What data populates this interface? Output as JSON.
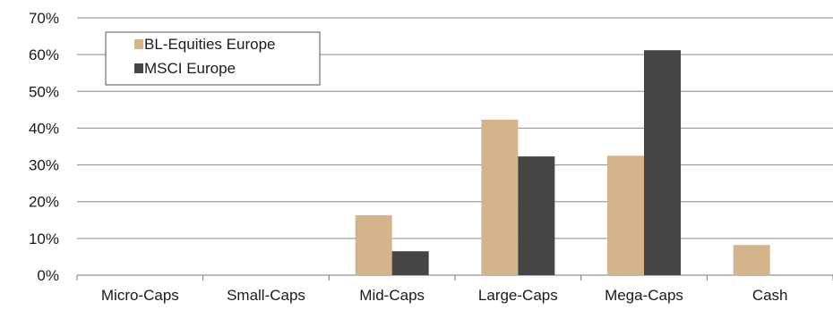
{
  "chart_data": {
    "type": "bar",
    "categories": [
      "Micro-Caps",
      "Small-Caps",
      "Mid-Caps",
      "Large-Caps",
      "Mega-Caps",
      "Cash"
    ],
    "series": [
      {
        "name": "BL-Equities Europe",
        "values": [
          0,
          0,
          16.3,
          42.3,
          32.5,
          8.2
        ],
        "color": "#d4b48a"
      },
      {
        "name": "MSCI Europe",
        "values": [
          0,
          0,
          6.5,
          32.3,
          61.2,
          0
        ],
        "color": "#454545"
      }
    ],
    "ylim": [
      0,
      70
    ],
    "yticks": [
      "0%",
      "10%",
      "20%",
      "30%",
      "40%",
      "50%",
      "60%",
      "70%"
    ],
    "grid": true,
    "legend_position": "top-left",
    "title": "",
    "xlabel": "",
    "ylabel": ""
  }
}
